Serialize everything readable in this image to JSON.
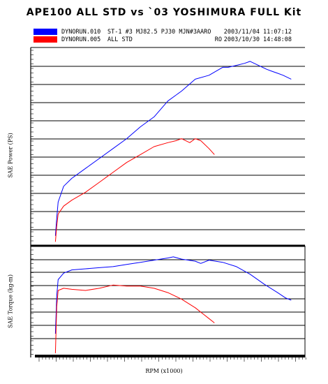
{
  "title": "APE100 ALL STD vs `03 YOSHIMURA FULL Kit",
  "legend": [
    {
      "file": "DYNORUN.010",
      "desc": "ST-1 #3 MJ82.5 PJ30 MJN#3AARO",
      "tag": "",
      "date": "2003/11/04 11:07:12",
      "color": "#0000ff"
    },
    {
      "file": "DYNORUN.005",
      "desc": "ALL STD",
      "tag": "RO",
      "date": "2003/10/30 14:48:08",
      "color": "#ff0000"
    }
  ],
  "axes": {
    "power_ylabel": "SAE Power (PS)",
    "torque_ylabel": "SAE Torque (kg-m)",
    "xlabel": "RPM (x1000)"
  },
  "chart_data": [
    {
      "type": "line",
      "panel": "power",
      "grid": true,
      "x_unit": "fraction of RPM axis",
      "y_unit": "fraction of power axis",
      "series": [
        {
          "color": "#0000ff",
          "x": [
            0.09,
            0.095,
            0.1,
            0.12,
            0.15,
            0.2,
            0.25,
            0.3,
            0.35,
            0.4,
            0.45,
            0.5,
            0.55,
            0.6,
            0.65,
            0.7,
            0.72,
            0.75,
            0.78,
            0.8,
            0.83,
            0.86,
            0.88,
            0.9,
            0.92,
            0.95
          ],
          "y": [
            0.05,
            0.14,
            0.22,
            0.3,
            0.34,
            0.39,
            0.44,
            0.49,
            0.54,
            0.6,
            0.65,
            0.73,
            0.78,
            0.84,
            0.86,
            0.9,
            0.9,
            0.91,
            0.92,
            0.93,
            0.91,
            0.89,
            0.88,
            0.87,
            0.86,
            0.84
          ]
        },
        {
          "color": "#ff0000",
          "x": [
            0.09,
            0.095,
            0.1,
            0.12,
            0.15,
            0.2,
            0.25,
            0.3,
            0.35,
            0.4,
            0.45,
            0.5,
            0.53,
            0.55,
            0.58,
            0.6,
            0.62,
            0.65,
            0.67
          ],
          "y": [
            0.02,
            0.1,
            0.16,
            0.2,
            0.23,
            0.27,
            0.32,
            0.37,
            0.42,
            0.46,
            0.5,
            0.52,
            0.53,
            0.54,
            0.52,
            0.54,
            0.53,
            0.49,
            0.46
          ]
        }
      ]
    },
    {
      "type": "line",
      "panel": "torque",
      "grid": true,
      "x_unit": "fraction of RPM axis",
      "y_unit": "fraction of torque axis",
      "series": [
        {
          "color": "#0000ff",
          "x": [
            0.09,
            0.095,
            0.1,
            0.12,
            0.15,
            0.2,
            0.25,
            0.3,
            0.35,
            0.4,
            0.45,
            0.5,
            0.52,
            0.55,
            0.6,
            0.62,
            0.65,
            0.7,
            0.75,
            0.8,
            0.85,
            0.9,
            0.93,
            0.95
          ],
          "y": [
            0.2,
            0.55,
            0.7,
            0.76,
            0.79,
            0.8,
            0.81,
            0.82,
            0.84,
            0.86,
            0.88,
            0.9,
            0.91,
            0.89,
            0.87,
            0.85,
            0.88,
            0.86,
            0.82,
            0.75,
            0.66,
            0.58,
            0.53,
            0.51
          ]
        },
        {
          "color": "#ff0000",
          "x": [
            0.09,
            0.095,
            0.1,
            0.12,
            0.15,
            0.2,
            0.25,
            0.3,
            0.35,
            0.4,
            0.45,
            0.5,
            0.55,
            0.6,
            0.63,
            0.65,
            0.67
          ],
          "y": [
            0.02,
            0.45,
            0.6,
            0.62,
            0.61,
            0.6,
            0.62,
            0.65,
            0.64,
            0.64,
            0.62,
            0.58,
            0.52,
            0.44,
            0.38,
            0.34,
            0.3
          ]
        }
      ]
    }
  ]
}
